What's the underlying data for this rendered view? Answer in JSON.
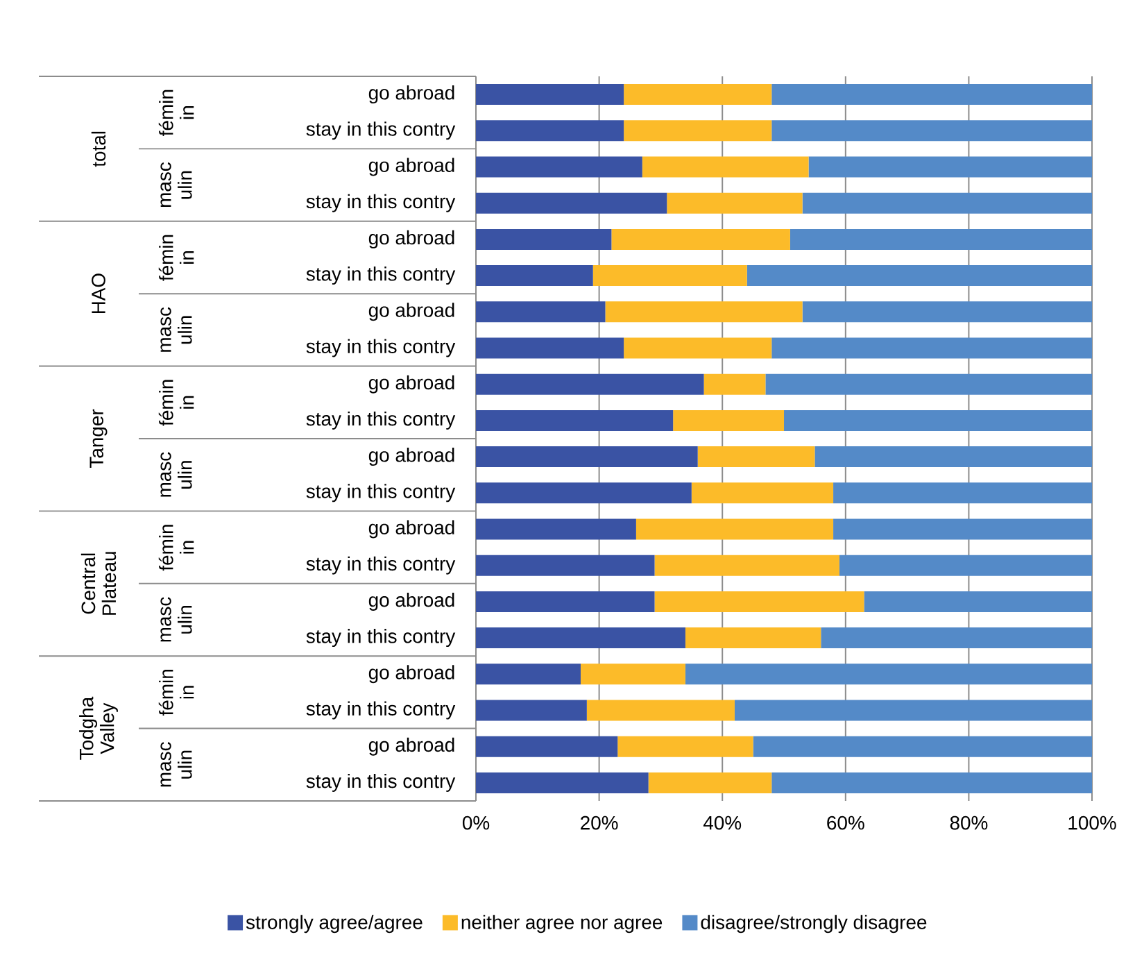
{
  "chart_data": {
    "type": "bar",
    "orientation": "horizontal",
    "stacked": true,
    "categories": [
      "go abroad",
      "stay in this contry",
      "go abroad",
      "stay in this contry",
      "go abroad",
      "stay in this contry",
      "go abroad",
      "stay in this contry",
      "go abroad",
      "stay in this contry",
      "go abroad",
      "stay in this contry",
      "go abroad",
      "stay in this contry",
      "go abroad",
      "stay in this contry",
      "go abroad",
      "stay in this contry",
      "go abroad",
      "stay in this contry"
    ],
    "series": [
      {
        "name": "strongly agree/agree",
        "color": "#3a53a4",
        "values": [
          24,
          24,
          27,
          31,
          22,
          19,
          21,
          24,
          37,
          32,
          36,
          35,
          26,
          29,
          29,
          34,
          17,
          18,
          23,
          28
        ]
      },
      {
        "name": "neither agree nor agree",
        "color": "#fcbb29",
        "values": [
          24,
          24,
          27,
          22,
          29,
          25,
          32,
          24,
          10,
          18,
          19,
          23,
          32,
          30,
          34,
          22,
          17,
          24,
          22,
          20
        ]
      },
      {
        "name": "disagree/strongly disagree",
        "color": "#548ac8",
        "values": [
          52,
          52,
          46,
          47,
          49,
          56,
          47,
          52,
          53,
          50,
          45,
          42,
          42,
          41,
          37,
          44,
          66,
          58,
          55,
          52
        ]
      }
    ],
    "xlim": [
      0,
      100
    ],
    "xticks": [
      {
        "value": 0,
        "label": "0%"
      },
      {
        "value": 20,
        "label": "20%"
      },
      {
        "value": 40,
        "label": "40%"
      },
      {
        "value": 60,
        "label": "60%"
      },
      {
        "value": 80,
        "label": "80%"
      },
      {
        "value": 100,
        "label": "100%"
      }
    ],
    "grid": "x",
    "legend": "bottom",
    "annotations": [
      "total",
      "fémin in",
      "masc ulin",
      "HAO",
      "fémin in",
      "masc ulin",
      "Tanger",
      "fémin in",
      "masc ulin",
      "Central Plateau",
      "fémin in",
      "masc ulin",
      "Todgha Valley",
      "fémin in",
      "masc ulin"
    ]
  }
}
